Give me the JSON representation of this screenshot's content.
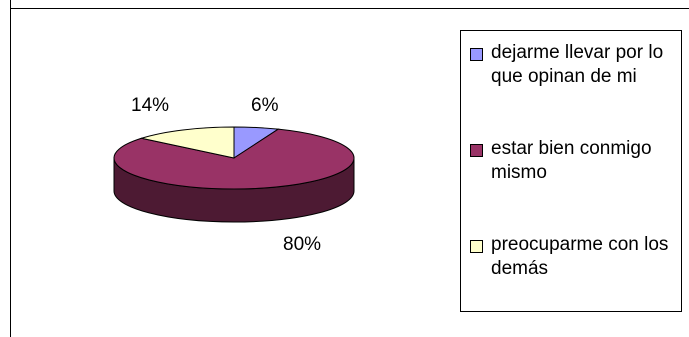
{
  "chart_data": {
    "type": "pie",
    "title": "",
    "style": "3d",
    "slices": [
      {
        "label": "dejarme llevar por lo que opinan de mi",
        "value": 6,
        "display": "6%",
        "color": "#9999ff"
      },
      {
        "label": "estar bien conmigo mismo",
        "value": 80,
        "display": "80%",
        "color": "#993366"
      },
      {
        "label": "preocuparme con los demás",
        "value": 14,
        "display": "14%",
        "color": "#ffffcc"
      }
    ],
    "legend_position": "right"
  }
}
